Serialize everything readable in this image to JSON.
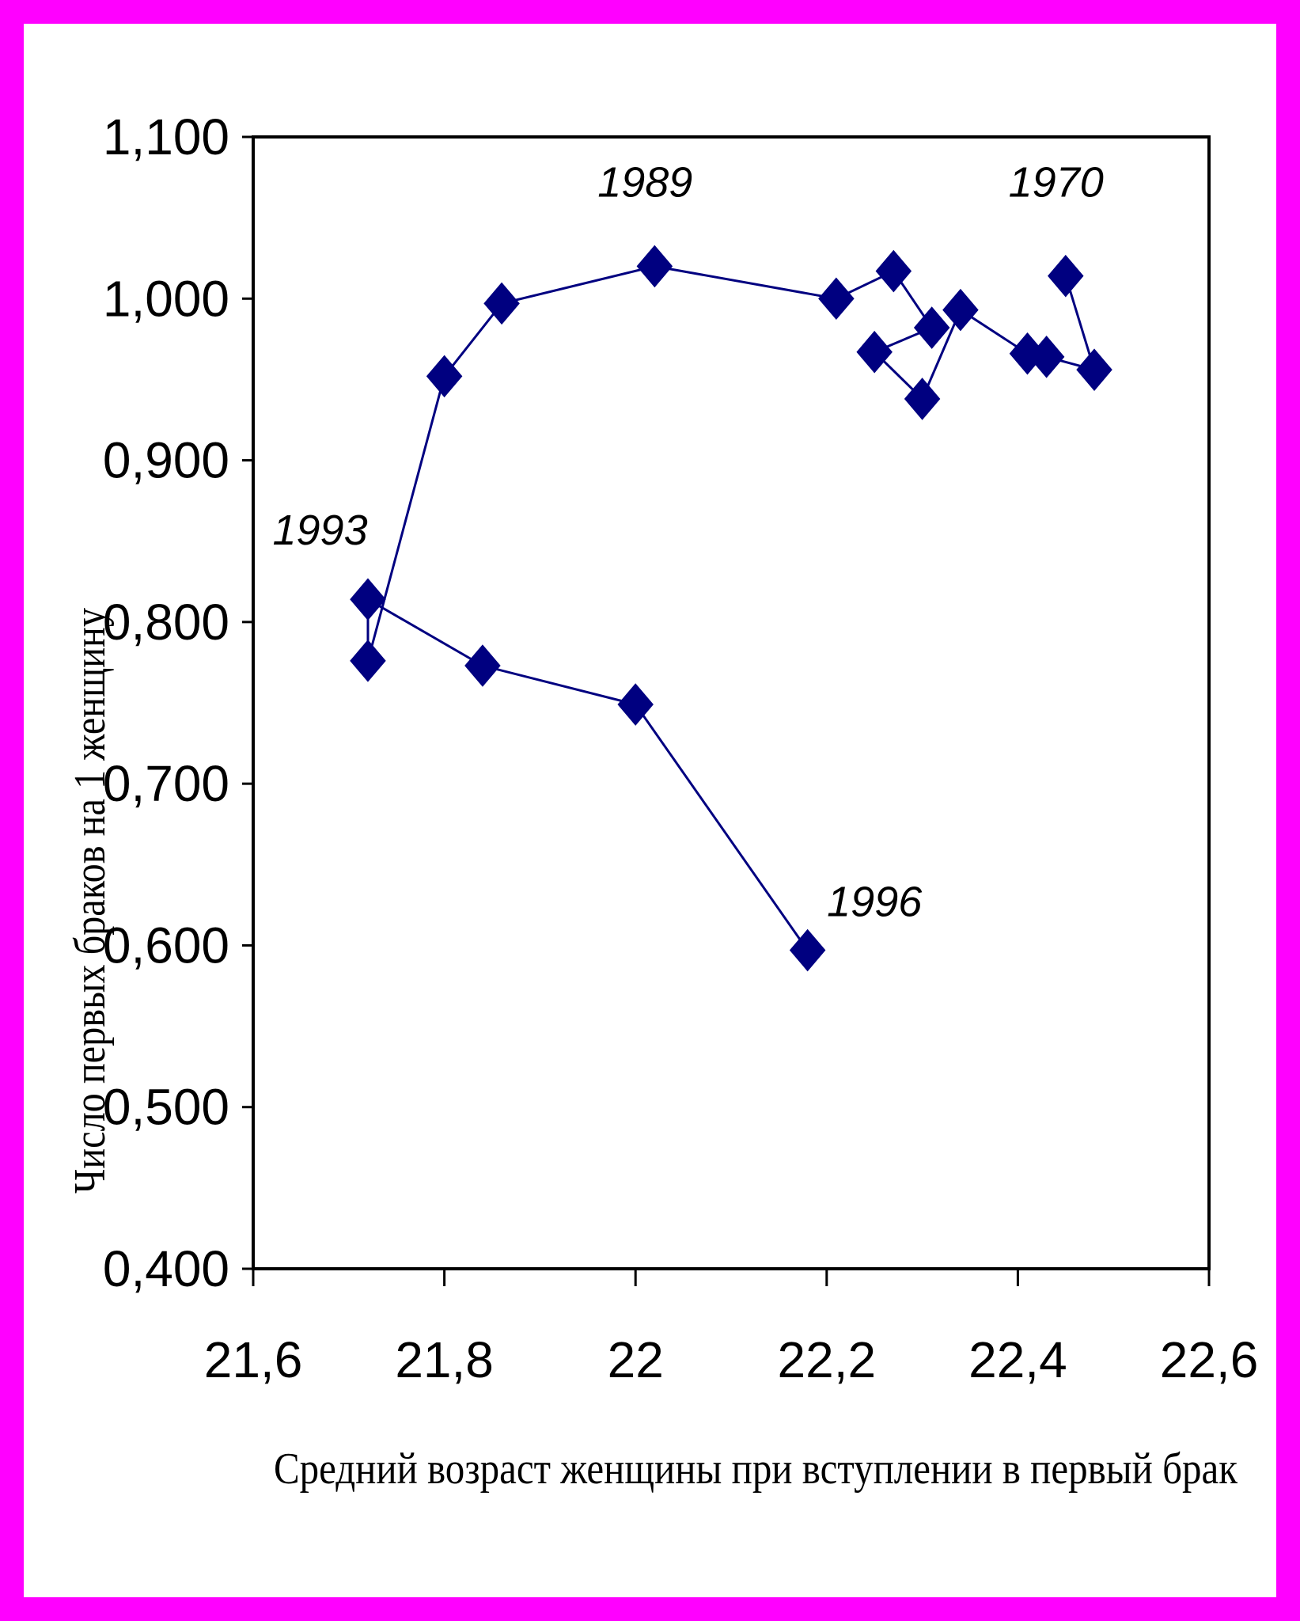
{
  "colors": {
    "border": "#ff00ff",
    "series": "#000080",
    "plot_border": "#000000"
  },
  "chart_data": {
    "type": "scatter",
    "title": "",
    "xlabel": "Средний возраст женщины при вступлении в первый брак",
    "ylabel": "Число первых браков на 1 женщину",
    "xlim": [
      21.6,
      22.6
    ],
    "ylim": [
      0.4,
      1.1
    ],
    "xticks": [
      21.6,
      21.8,
      22.0,
      22.2,
      22.4,
      22.6
    ],
    "xtick_labels": [
      "21,6",
      "21,8",
      "22",
      "22,2",
      "22,4",
      "22,6"
    ],
    "yticks": [
      0.4,
      0.5,
      0.6,
      0.7,
      0.8,
      0.9,
      1.0,
      1.1
    ],
    "ytick_labels": [
      "0,400",
      "0,500",
      "0,600",
      "0,700",
      "0,800",
      "0,900",
      "1,000",
      "1,100"
    ],
    "marker": "diamond",
    "connected": true,
    "grid": false,
    "legend": "none",
    "series": [
      {
        "points": [
          {
            "x": 22.45,
            "y": 1.014
          },
          {
            "x": 22.48,
            "y": 0.956
          },
          {
            "x": 22.43,
            "y": 0.964
          },
          {
            "x": 22.41,
            "y": 0.966
          },
          {
            "x": 22.34,
            "y": 0.993
          },
          {
            "x": 22.3,
            "y": 0.938
          },
          {
            "x": 22.25,
            "y": 0.967
          },
          {
            "x": 22.31,
            "y": 0.982
          },
          {
            "x": 22.27,
            "y": 1.017
          },
          {
            "x": 22.21,
            "y": 1.0
          },
          {
            "x": 22.02,
            "y": 1.02
          },
          {
            "x": 21.86,
            "y": 0.997
          },
          {
            "x": 21.8,
            "y": 0.952
          },
          {
            "x": 21.72,
            "y": 0.776
          },
          {
            "x": 21.72,
            "y": 0.814
          },
          {
            "x": 21.84,
            "y": 0.773
          },
          {
            "x": 22.0,
            "y": 0.749
          },
          {
            "x": 22.18,
            "y": 0.597
          }
        ]
      }
    ],
    "annotations": [
      {
        "text": "1970",
        "x": 22.44,
        "y": 1.063
      },
      {
        "text": "1989",
        "x": 22.01,
        "y": 1.063
      },
      {
        "text": "1993",
        "x": 21.67,
        "y": 0.848
      },
      {
        "text": "1996",
        "x": 22.25,
        "y": 0.618
      }
    ]
  }
}
